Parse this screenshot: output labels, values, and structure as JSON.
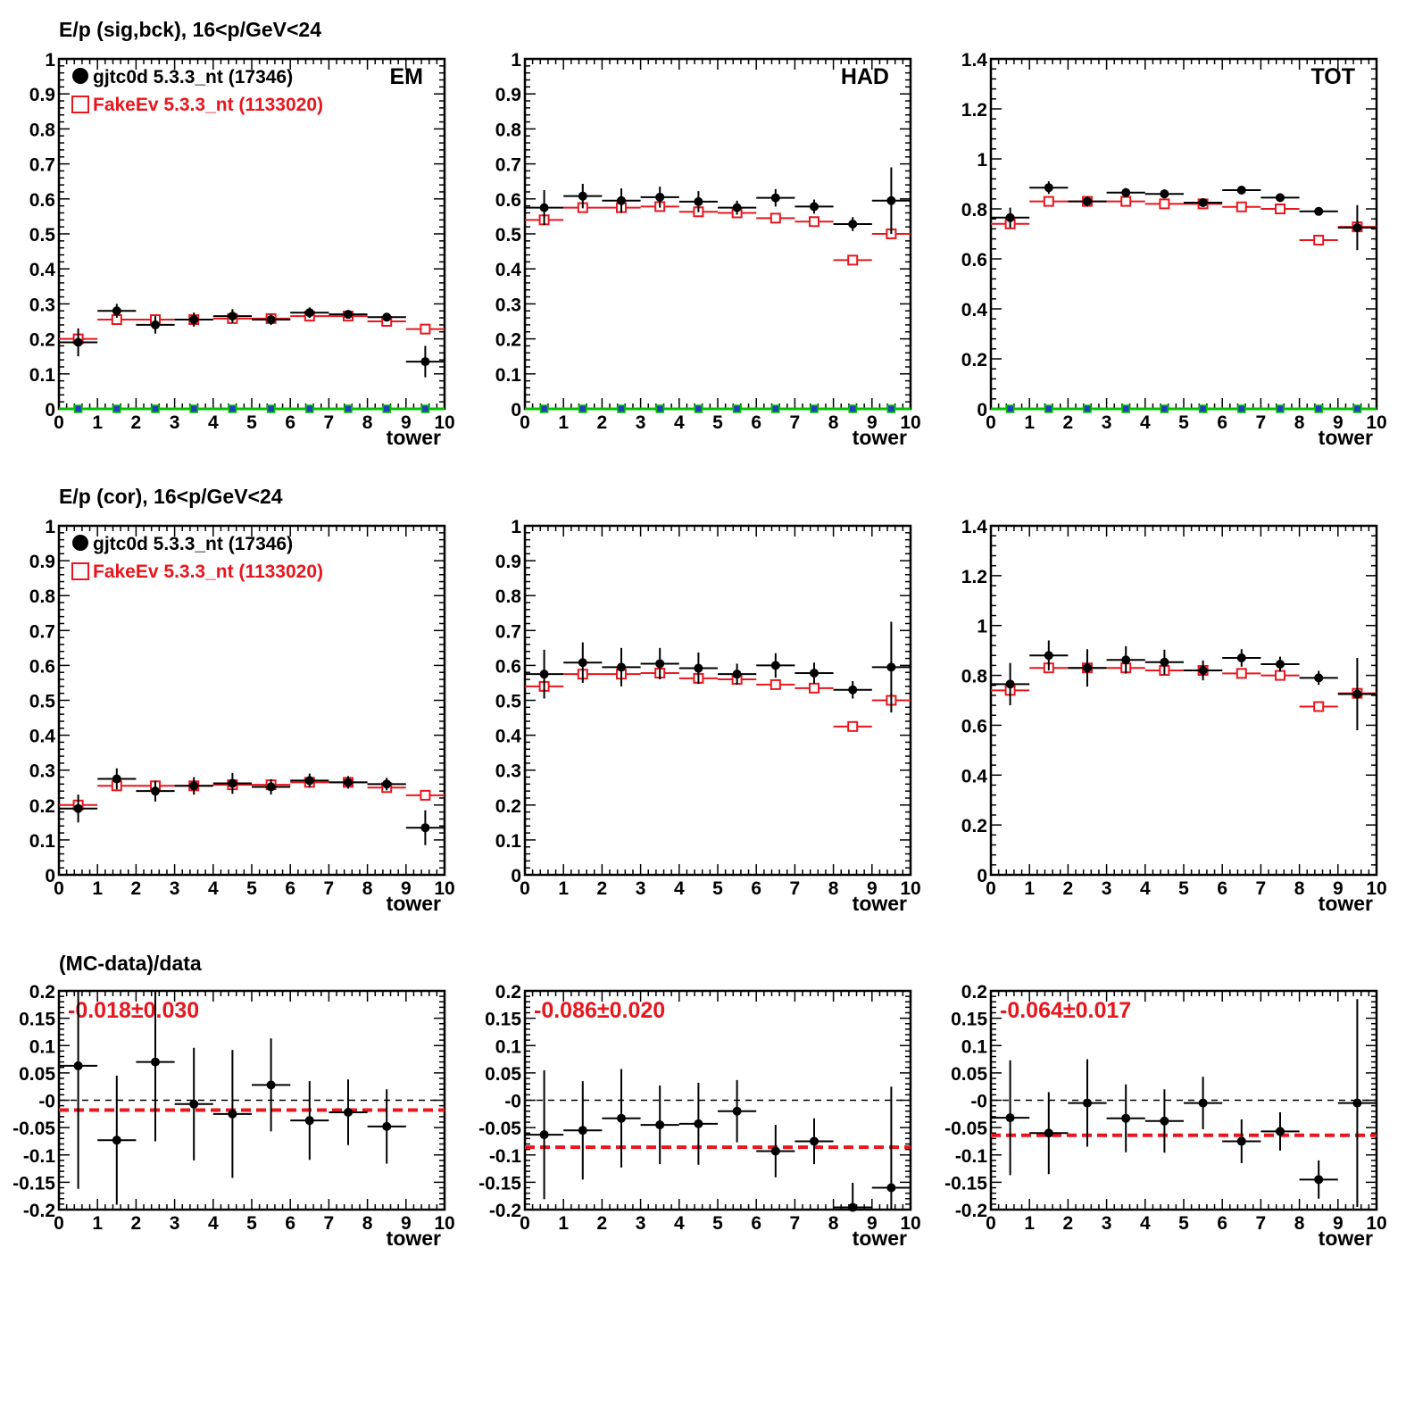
{
  "page": {
    "row_titles": [
      "E/p (sig,bck), 16<p/GeV<24",
      "E/p (cor), 16<p/GeV<24",
      "(MC-data)/data"
    ]
  },
  "colors": {
    "data": "#000000",
    "mc": "#e8161d",
    "zero_line": "#00c000",
    "zero_marker": "#1f3fbf",
    "fit_line": "#e8161d"
  },
  "legend": {
    "data_label": "gjtc0d 5.3.3_nt (17346)",
    "mc_label": "FakeEv 5.3.3_nt (1133020)"
  },
  "chart_data": [
    {
      "type": "scatter",
      "row": 0,
      "col": 0,
      "xlabel": "tower",
      "corner_label": "EM",
      "legend": true,
      "zero_markers": true,
      "xlim": [
        0,
        10
      ],
      "ylim": [
        0,
        1.0
      ],
      "xticks": [
        0,
        1,
        2,
        3,
        4,
        5,
        6,
        7,
        8,
        9,
        10
      ],
      "yticks": [
        0,
        0.1,
        0.2,
        0.3,
        0.4,
        0.5,
        0.6,
        0.7,
        0.8,
        0.9,
        1
      ],
      "ytick_labels": [
        "0",
        "0.1",
        "0.2",
        "0.3",
        "0.4",
        "0.5",
        "0.6",
        "0.7",
        "0.8",
        "0.9",
        "1"
      ],
      "series": [
        {
          "name": "gjtc0d 5.3.3_nt (17346)",
          "marker": "filled-circle",
          "x": [
            0.5,
            1.5,
            2.5,
            3.5,
            4.5,
            5.5,
            6.5,
            7.5,
            8.5,
            9.5
          ],
          "y": [
            0.19,
            0.28,
            0.24,
            0.255,
            0.265,
            0.255,
            0.275,
            0.27,
            0.262,
            0.135
          ],
          "yerr": [
            0.04,
            0.02,
            0.025,
            0.02,
            0.02,
            0.015,
            0.015,
            0.012,
            0.012,
            0.045
          ]
        },
        {
          "name": "FakeEv 5.3.3_nt (1133020)",
          "marker": "open-square",
          "x": [
            0.5,
            1.5,
            2.5,
            3.5,
            4.5,
            5.5,
            6.5,
            7.5,
            8.5,
            9.5
          ],
          "y": [
            0.2,
            0.255,
            0.255,
            0.255,
            0.258,
            0.258,
            0.265,
            0.265,
            0.25,
            0.228
          ],
          "yerr": [
            0.005,
            0.004,
            0.004,
            0.004,
            0.004,
            0.004,
            0.004,
            0.004,
            0.004,
            0.005
          ]
        }
      ]
    },
    {
      "type": "scatter",
      "row": 0,
      "col": 1,
      "xlabel": "tower",
      "corner_label": "HAD",
      "legend": false,
      "zero_markers": true,
      "xlim": [
        0,
        10
      ],
      "ylim": [
        0,
        1.0
      ],
      "xticks": [
        0,
        1,
        2,
        3,
        4,
        5,
        6,
        7,
        8,
        9,
        10
      ],
      "yticks": [
        0,
        0.1,
        0.2,
        0.3,
        0.4,
        0.5,
        0.6,
        0.7,
        0.8,
        0.9,
        1
      ],
      "ytick_labels": [
        "0",
        "0.1",
        "0.2",
        "0.3",
        "0.4",
        "0.5",
        "0.6",
        "0.7",
        "0.8",
        "0.9",
        "1"
      ],
      "series": [
        {
          "name": "gjtc0d 5.3.3_nt (17346)",
          "marker": "filled-circle",
          "x": [
            0.5,
            1.5,
            2.5,
            3.5,
            4.5,
            5.5,
            6.5,
            7.5,
            8.5,
            9.5
          ],
          "y": [
            0.575,
            0.608,
            0.595,
            0.605,
            0.592,
            0.575,
            0.603,
            0.578,
            0.528,
            0.595
          ],
          "yerr": [
            0.05,
            0.035,
            0.035,
            0.03,
            0.03,
            0.02,
            0.025,
            0.02,
            0.02,
            0.095
          ]
        },
        {
          "name": "FakeEv 5.3.3_nt (1133020)",
          "marker": "open-square",
          "x": [
            0.5,
            1.5,
            2.5,
            3.5,
            4.5,
            5.5,
            6.5,
            7.5,
            8.5,
            9.5
          ],
          "y": [
            0.54,
            0.575,
            0.575,
            0.578,
            0.563,
            0.56,
            0.545,
            0.535,
            0.425,
            0.5
          ],
          "yerr": [
            0.006,
            0.005,
            0.005,
            0.005,
            0.005,
            0.005,
            0.005,
            0.005,
            0.005,
            0.008
          ]
        }
      ]
    },
    {
      "type": "scatter",
      "row": 0,
      "col": 2,
      "xlabel": "tower",
      "corner_label": "TOT",
      "legend": false,
      "zero_markers": true,
      "xlim": [
        0,
        10
      ],
      "ylim": [
        0,
        1.4
      ],
      "xticks": [
        0,
        1,
        2,
        3,
        4,
        5,
        6,
        7,
        8,
        9,
        10
      ],
      "yticks": [
        0,
        0.2,
        0.4,
        0.6,
        0.8,
        1.0,
        1.2,
        1.4
      ],
      "ytick_labels": [
        "0",
        "0.2",
        "0.4",
        "0.6",
        "0.8",
        "1",
        "1.2",
        "1.4"
      ],
      "series": [
        {
          "name": "gjtc0d 5.3.3_nt (17346)",
          "marker": "filled-circle",
          "x": [
            0.5,
            1.5,
            2.5,
            3.5,
            4.5,
            5.5,
            6.5,
            7.5,
            8.5,
            9.5
          ],
          "y": [
            0.765,
            0.885,
            0.83,
            0.865,
            0.86,
            0.825,
            0.875,
            0.845,
            0.79,
            0.725
          ],
          "yerr": [
            0.04,
            0.025,
            0.02,
            0.018,
            0.018,
            0.012,
            0.01,
            0.01,
            0.008,
            0.09
          ]
        },
        {
          "name": "FakeEv 5.3.3_nt (1133020)",
          "marker": "open-square",
          "x": [
            0.5,
            1.5,
            2.5,
            3.5,
            4.5,
            5.5,
            6.5,
            7.5,
            8.5,
            9.5
          ],
          "y": [
            0.74,
            0.83,
            0.83,
            0.83,
            0.82,
            0.82,
            0.808,
            0.8,
            0.675,
            0.728
          ],
          "yerr": [
            0.008,
            0.006,
            0.006,
            0.006,
            0.006,
            0.006,
            0.006,
            0.006,
            0.006,
            0.01
          ]
        }
      ]
    },
    {
      "type": "scatter",
      "row": 1,
      "col": 0,
      "xlabel": "tower",
      "corner_label": "",
      "legend": true,
      "zero_markers": false,
      "xlim": [
        0,
        10
      ],
      "ylim": [
        0,
        1.0
      ],
      "xticks": [
        0,
        1,
        2,
        3,
        4,
        5,
        6,
        7,
        8,
        9,
        10
      ],
      "yticks": [
        0,
        0.1,
        0.2,
        0.3,
        0.4,
        0.5,
        0.6,
        0.7,
        0.8,
        0.9,
        1
      ],
      "ytick_labels": [
        "0",
        "0.1",
        "0.2",
        "0.3",
        "0.4",
        "0.5",
        "0.6",
        "0.7",
        "0.8",
        "0.9",
        "1"
      ],
      "series": [
        {
          "name": "gjtc0d 5.3.3_nt (17346)",
          "marker": "filled-circle",
          "x": [
            0.5,
            1.5,
            2.5,
            3.5,
            4.5,
            5.5,
            6.5,
            7.5,
            8.5,
            9.5
          ],
          "y": [
            0.19,
            0.275,
            0.24,
            0.255,
            0.262,
            0.252,
            0.27,
            0.265,
            0.26,
            0.135
          ],
          "yerr": [
            0.04,
            0.03,
            0.03,
            0.025,
            0.03,
            0.022,
            0.02,
            0.018,
            0.018,
            0.05
          ]
        },
        {
          "name": "FakeEv 5.3.3_nt (1133020)",
          "marker": "open-square",
          "x": [
            0.5,
            1.5,
            2.5,
            3.5,
            4.5,
            5.5,
            6.5,
            7.5,
            8.5,
            9.5
          ],
          "y": [
            0.2,
            0.255,
            0.255,
            0.255,
            0.258,
            0.258,
            0.265,
            0.265,
            0.25,
            0.228
          ],
          "yerr": [
            0.005,
            0.004,
            0.004,
            0.004,
            0.004,
            0.004,
            0.004,
            0.004,
            0.004,
            0.005
          ]
        }
      ]
    },
    {
      "type": "scatter",
      "row": 1,
      "col": 1,
      "xlabel": "tower",
      "corner_label": "",
      "legend": false,
      "zero_markers": false,
      "xlim": [
        0,
        10
      ],
      "ylim": [
        0,
        1.0
      ],
      "xticks": [
        0,
        1,
        2,
        3,
        4,
        5,
        6,
        7,
        8,
        9,
        10
      ],
      "yticks": [
        0,
        0.1,
        0.2,
        0.3,
        0.4,
        0.5,
        0.6,
        0.7,
        0.8,
        0.9,
        1
      ],
      "ytick_labels": [
        "0",
        "0.1",
        "0.2",
        "0.3",
        "0.4",
        "0.5",
        "0.6",
        "0.7",
        "0.8",
        "0.9",
        "1"
      ],
      "series": [
        {
          "name": "gjtc0d 5.3.3_nt (17346)",
          "marker": "filled-circle",
          "x": [
            0.5,
            1.5,
            2.5,
            3.5,
            4.5,
            5.5,
            6.5,
            7.5,
            8.5,
            9.5
          ],
          "y": [
            0.575,
            0.608,
            0.595,
            0.605,
            0.592,
            0.575,
            0.6,
            0.578,
            0.53,
            0.595
          ],
          "yerr": [
            0.07,
            0.058,
            0.055,
            0.045,
            0.045,
            0.03,
            0.035,
            0.03,
            0.025,
            0.13
          ]
        },
        {
          "name": "FakeEv 5.3.3_nt (1133020)",
          "marker": "open-square",
          "x": [
            0.5,
            1.5,
            2.5,
            3.5,
            4.5,
            5.5,
            6.5,
            7.5,
            8.5,
            9.5
          ],
          "y": [
            0.54,
            0.575,
            0.575,
            0.578,
            0.563,
            0.56,
            0.545,
            0.535,
            0.425,
            0.5
          ],
          "yerr": [
            0.006,
            0.005,
            0.005,
            0.005,
            0.005,
            0.005,
            0.005,
            0.005,
            0.005,
            0.008
          ]
        }
      ]
    },
    {
      "type": "scatter",
      "row": 1,
      "col": 2,
      "xlabel": "tower",
      "corner_label": "",
      "legend": false,
      "zero_markers": false,
      "xlim": [
        0,
        10
      ],
      "ylim": [
        0,
        1.4
      ],
      "xticks": [
        0,
        1,
        2,
        3,
        4,
        5,
        6,
        7,
        8,
        9,
        10
      ],
      "yticks": [
        0,
        0.2,
        0.4,
        0.6,
        0.8,
        1.0,
        1.2,
        1.4
      ],
      "ytick_labels": [
        "0",
        "0.2",
        "0.4",
        "0.6",
        "0.8",
        "1",
        "1.2",
        "1.4"
      ],
      "series": [
        {
          "name": "gjtc0d 5.3.3_nt (17346)",
          "marker": "filled-circle",
          "x": [
            0.5,
            1.5,
            2.5,
            3.5,
            4.5,
            5.5,
            6.5,
            7.5,
            8.5,
            9.5
          ],
          "y": [
            0.765,
            0.88,
            0.83,
            0.862,
            0.853,
            0.82,
            0.87,
            0.845,
            0.79,
            0.725
          ],
          "yerr": [
            0.085,
            0.06,
            0.075,
            0.055,
            0.05,
            0.04,
            0.035,
            0.03,
            0.028,
            0.145
          ]
        },
        {
          "name": "FakeEv 5.3.3_nt (1133020)",
          "marker": "open-square",
          "x": [
            0.5,
            1.5,
            2.5,
            3.5,
            4.5,
            5.5,
            6.5,
            7.5,
            8.5,
            9.5
          ],
          "y": [
            0.74,
            0.83,
            0.83,
            0.83,
            0.82,
            0.82,
            0.808,
            0.8,
            0.675,
            0.728
          ],
          "yerr": [
            0.008,
            0.006,
            0.006,
            0.006,
            0.006,
            0.006,
            0.006,
            0.006,
            0.006,
            0.01
          ]
        }
      ]
    },
    {
      "type": "scatter",
      "row": 2,
      "col": 0,
      "xlabel": "tower",
      "fit_label": "-0.018±0.030",
      "fit_value": -0.018,
      "xlim": [
        0,
        10
      ],
      "ylim": [
        -0.2,
        0.2
      ],
      "xticks": [
        0,
        1,
        2,
        3,
        4,
        5,
        6,
        7,
        8,
        9,
        10
      ],
      "yticks": [
        -0.2,
        -0.15,
        -0.1,
        -0.05,
        0,
        0.05,
        0.1,
        0.15,
        0.2
      ],
      "ytick_labels": [
        "-0.2",
        "-0.15",
        "-0.1",
        "-0.05",
        "-0",
        "0.05",
        "0.1",
        "0.15",
        "0.2"
      ],
      "series": [
        {
          "name": "(MC-data)/data",
          "marker": "filled-circle",
          "x": [
            0.5,
            1.5,
            2.5,
            3.5,
            4.5,
            5.5,
            6.5,
            7.5,
            8.5
          ],
          "y": [
            0.063,
            -0.073,
            0.07,
            -0.007,
            -0.025,
            0.028,
            -0.037,
            -0.022,
            -0.048
          ],
          "yerr": [
            0.225,
            0.118,
            0.145,
            0.103,
            0.117,
            0.085,
            0.072,
            0.06,
            0.068
          ]
        }
      ]
    },
    {
      "type": "scatter",
      "row": 2,
      "col": 1,
      "xlabel": "tower",
      "fit_label": "-0.086±0.020",
      "fit_value": -0.086,
      "xlim": [
        0,
        10
      ],
      "ylim": [
        -0.2,
        0.2
      ],
      "xticks": [
        0,
        1,
        2,
        3,
        4,
        5,
        6,
        7,
        8,
        9,
        10
      ],
      "yticks": [
        -0.2,
        -0.15,
        -0.1,
        -0.05,
        0,
        0.05,
        0.1,
        0.15,
        0.2
      ],
      "ytick_labels": [
        "-0.2",
        "-0.15",
        "-0.1",
        "-0.05",
        "-0",
        "0.05",
        "0.1",
        "0.15",
        "0.2"
      ],
      "series": [
        {
          "name": "(MC-data)/data",
          "marker": "filled-circle",
          "x": [
            0.5,
            1.5,
            2.5,
            3.5,
            4.5,
            5.5,
            6.5,
            7.5,
            8.5,
            9.5
          ],
          "y": [
            -0.063,
            -0.055,
            -0.033,
            -0.045,
            -0.043,
            -0.02,
            -0.093,
            -0.075,
            -0.196,
            -0.16
          ],
          "yerr": [
            0.118,
            0.09,
            0.09,
            0.072,
            0.075,
            0.057,
            0.048,
            0.042,
            0.045,
            0.185
          ]
        }
      ]
    },
    {
      "type": "scatter",
      "row": 2,
      "col": 2,
      "xlabel": "tower",
      "fit_label": "-0.064±0.017",
      "fit_value": -0.064,
      "xlim": [
        0,
        10
      ],
      "ylim": [
        -0.2,
        0.2
      ],
      "xticks": [
        0,
        1,
        2,
        3,
        4,
        5,
        6,
        7,
        8,
        9,
        10
      ],
      "yticks": [
        -0.2,
        -0.15,
        -0.1,
        -0.05,
        0,
        0.05,
        0.1,
        0.15,
        0.2
      ],
      "ytick_labels": [
        "-0.2",
        "-0.15",
        "-0.1",
        "-0.05",
        "-0",
        "0.05",
        "0.1",
        "0.15",
        "0.2"
      ],
      "series": [
        {
          "name": "(MC-data)/data",
          "marker": "filled-circle",
          "x": [
            0.5,
            1.5,
            2.5,
            3.5,
            4.5,
            5.5,
            6.5,
            7.5,
            8.5,
            9.5
          ],
          "y": [
            -0.032,
            -0.06,
            -0.005,
            -0.033,
            -0.038,
            -0.005,
            -0.075,
            -0.057,
            -0.145,
            -0.005
          ],
          "yerr": [
            0.105,
            0.075,
            0.08,
            0.062,
            0.058,
            0.048,
            0.04,
            0.035,
            0.035,
            0.19
          ]
        }
      ]
    }
  ]
}
